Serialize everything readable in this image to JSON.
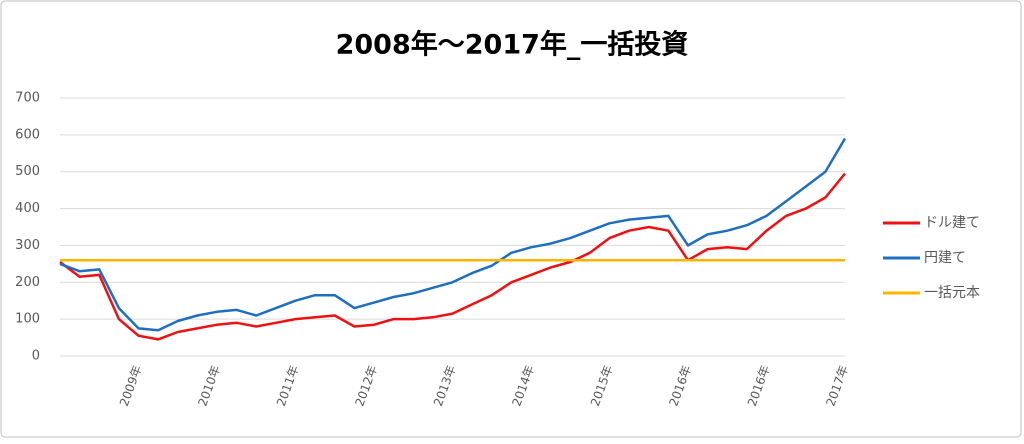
{
  "chart_data": {
    "type": "line",
    "title": "2008年～2017年_一括投資",
    "categories": [
      null,
      null,
      null,
      null,
      "2009年",
      null,
      null,
      null,
      "2010年",
      null,
      null,
      null,
      "2011年",
      null,
      null,
      null,
      "2012年",
      null,
      null,
      null,
      "2013年",
      null,
      null,
      null,
      "2014年",
      null,
      null,
      null,
      "2015年",
      null,
      null,
      null,
      "2016年",
      null,
      null,
      null,
      "2016年",
      null,
      null,
      null,
      "2017年"
    ],
    "series": [
      {
        "name": "ドル建て",
        "color": "#ee1111",
        "values": [
          255,
          215,
          220,
          100,
          55,
          45,
          65,
          75,
          85,
          90,
          80,
          90,
          100,
          105,
          110,
          80,
          85,
          100,
          100,
          105,
          115,
          140,
          165,
          200,
          220,
          240,
          255,
          280,
          320,
          340,
          350,
          340,
          260,
          290,
          295,
          290,
          340,
          380,
          400,
          430,
          495
        ]
      },
      {
        "name": "円建て",
        "color": "#1f6fc0",
        "values": [
          250,
          230,
          235,
          130,
          75,
          70,
          95,
          110,
          120,
          125,
          110,
          130,
          150,
          165,
          165,
          130,
          145,
          160,
          170,
          185,
          200,
          225,
          245,
          280,
          295,
          305,
          320,
          340,
          360,
          370,
          375,
          380,
          300,
          330,
          340,
          355,
          380,
          420,
          460,
          500,
          590
        ]
      },
      {
        "name": "一括元本",
        "color": "#ffb400",
        "values": [
          260,
          260,
          260,
          260,
          260,
          260,
          260,
          260,
          260,
          260,
          260,
          260,
          260,
          260,
          260,
          260,
          260,
          260,
          260,
          260,
          260,
          260,
          260,
          260,
          260,
          260,
          260,
          260,
          260,
          260,
          260,
          260,
          260,
          260,
          260,
          260,
          260,
          260,
          260,
          260,
          260
        ]
      }
    ],
    "ylim": [
      0,
      700
    ],
    "yticks": [
      0,
      100,
      200,
      300,
      400,
      500,
      600,
      700
    ],
    "grid": true,
    "legend": "right"
  }
}
